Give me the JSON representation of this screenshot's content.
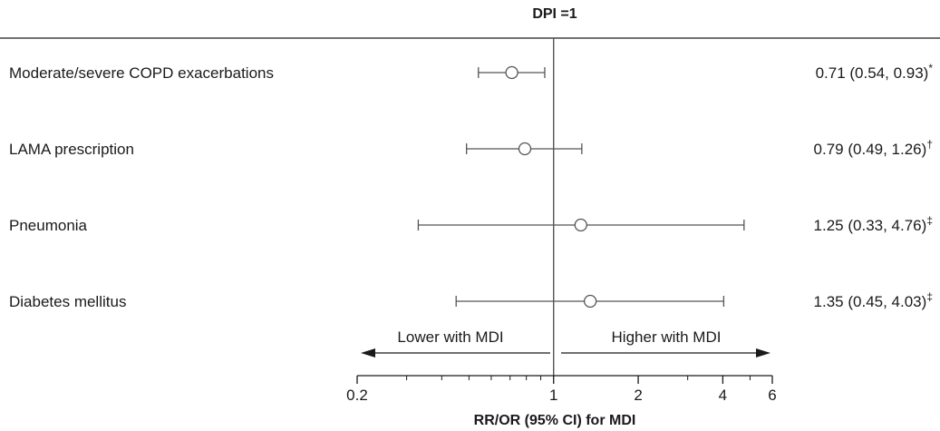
{
  "chart_data": {
    "type": "forest",
    "title": "DPI =1",
    "xlabel": "RR/OR (95% CI) for MDI",
    "x_scale": "log",
    "xlim": [
      0.2,
      6
    ],
    "reference_value": 1,
    "x_ticks": [
      {
        "value": 0.2,
        "label": "0.2"
      },
      {
        "value": 1,
        "label": "1"
      },
      {
        "value": 2,
        "label": "2"
      },
      {
        "value": 4,
        "label": "4"
      },
      {
        "value": 6,
        "label": "6"
      }
    ],
    "x_minor_ticks": [
      0.3,
      0.4,
      0.5,
      0.6,
      0.7,
      0.8,
      0.9,
      3,
      5
    ],
    "rows": [
      {
        "label": "Moderate/severe COPD exacerbations",
        "estimate": 0.71,
        "lower": 0.54,
        "upper": 0.93,
        "ci_text": "0.71 (0.54, 0.93)",
        "mark": "*"
      },
      {
        "label": "LAMA prescription",
        "estimate": 0.79,
        "lower": 0.49,
        "upper": 1.26,
        "ci_text": "0.79 (0.49, 1.26)",
        "mark": "†"
      },
      {
        "label": "Pneumonia",
        "estimate": 1.25,
        "lower": 0.33,
        "upper": 4.76,
        "ci_text": "1.25 (0.33, 4.76)",
        "mark": "‡"
      },
      {
        "label": "Diabetes mellitus",
        "estimate": 1.35,
        "lower": 0.45,
        "upper": 4.03,
        "ci_text": "1.35 (0.45, 4.03)",
        "mark": "‡"
      }
    ],
    "arrows": {
      "left": "Lower with MDI",
      "right": "Higher with MDI"
    }
  }
}
